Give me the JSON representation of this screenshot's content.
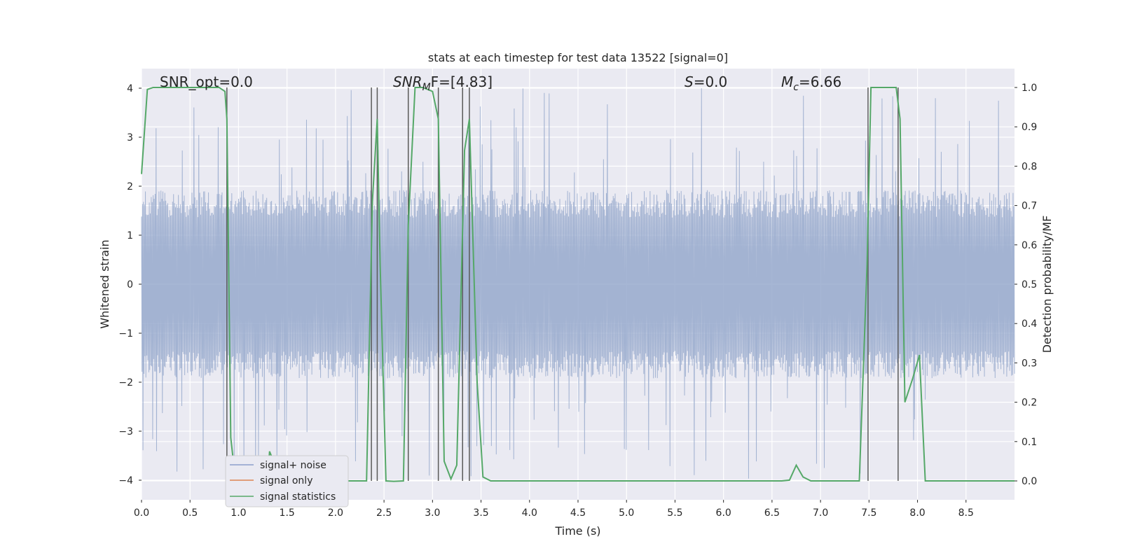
{
  "chart_data": {
    "type": "line",
    "title": "stats at each timestep for test data 13522 [signal=0]",
    "xlabel": "Time (s)",
    "ylabel": "Whitened strain",
    "ylabel_right": "Detection probability/MF",
    "xlim": [
      0,
      9
    ],
    "ylim": [
      -4.4,
      4.4
    ],
    "ylim_right": [
      -0.048,
      1.048
    ],
    "grid": true,
    "x_ticks": [
      "0.0",
      "0.5",
      "1.0",
      "1.5",
      "2.0",
      "2.5",
      "3.0",
      "3.5",
      "4.0",
      "4.5",
      "5.0",
      "5.5",
      "6.0",
      "6.5",
      "7.0",
      "7.5",
      "8.0",
      "8.5"
    ],
    "y_ticks": [
      "−4",
      "−3",
      "−2",
      "−1",
      "0",
      "1",
      "2",
      "3",
      "4"
    ],
    "y_right_ticks": [
      "0.0",
      "0.1",
      "0.2",
      "0.3",
      "0.4",
      "0.5",
      "0.6",
      "0.7",
      "0.8",
      "0.9",
      "1.0"
    ],
    "annotations": [
      {
        "text": "SNR_opt=0.0"
      },
      {
        "text": "SNR",
        "text_sub": "M",
        "text_tail": "F=[4.83]"
      },
      {
        "text": "S",
        "text_tail": "=0.0"
      },
      {
        "text": "M",
        "text_sub": "c",
        "text_tail": "=6.66"
      }
    ],
    "legend": {
      "placement": "lower-left",
      "entries": [
        {
          "label": "signal+ noise",
          "color": "#8da0cb"
        },
        {
          "label": "signal only",
          "color": "#dd8452"
        },
        {
          "label": "signal statistics",
          "color": "#55a868"
        }
      ]
    },
    "series": [
      {
        "name": "signal+ noise",
        "color": "#97a9cd",
        "description_values": "noise",
        "t_range": [
          0,
          9
        ],
        "amplitude_core": 1.6,
        "amplitude_peak": 4.0
      },
      {
        "name": "signal only",
        "color": "#dd8452",
        "values": []
      },
      {
        "name": "signal statistics",
        "color": "#55a868",
        "axis": "right",
        "x": [
          0.0,
          0.06,
          0.12,
          0.2,
          0.3,
          0.5,
          0.7,
          0.8,
          0.86,
          0.88,
          0.92,
          0.96,
          1.0,
          1.05,
          1.1,
          1.2,
          1.3,
          1.32,
          1.36,
          1.45,
          1.6,
          2.0,
          2.32,
          2.38,
          2.43,
          2.46,
          2.52,
          2.6,
          2.7,
          2.75,
          2.82,
          2.9,
          3.0,
          3.06,
          3.12,
          3.19,
          3.25,
          3.33,
          3.38,
          3.46,
          3.52,
          3.6,
          4.0,
          5.0,
          6.0,
          6.6,
          6.68,
          6.75,
          6.82,
          6.9,
          7.0,
          7.4,
          7.48,
          7.52,
          7.58,
          7.7,
          7.78,
          7.82,
          7.87,
          7.95,
          8.02,
          8.08,
          8.2,
          9.0
        ],
        "values": [
          0.78,
          0.995,
          1.0,
          1.0,
          1.0,
          1.0,
          1.0,
          1.0,
          0.99,
          0.92,
          0.11,
          0.02,
          -0.02,
          -0.03,
          -0.02,
          -0.01,
          0.0,
          0.075,
          0.05,
          0.01,
          0.0,
          0.0,
          0.0,
          0.71,
          0.92,
          0.55,
          0.0,
          -0.001,
          0.0,
          0.65,
          1.0,
          1.0,
          0.99,
          0.92,
          0.05,
          0.005,
          0.04,
          0.84,
          0.92,
          0.25,
          0.01,
          0.0,
          0.0,
          0.0,
          0.0,
          0.0,
          0.002,
          0.04,
          0.01,
          0.0,
          0.0,
          0.0,
          0.55,
          1.0,
          1.0,
          1.0,
          1.0,
          0.92,
          0.2,
          0.26,
          0.32,
          0.0,
          0.0,
          0.0
        ]
      }
    ],
    "vertical_markers": [
      0.88,
      2.37,
      2.43,
      2.75,
      3.06,
      3.31,
      3.38,
      7.49,
      7.8
    ],
    "marker_color": "#5a5a5a"
  }
}
